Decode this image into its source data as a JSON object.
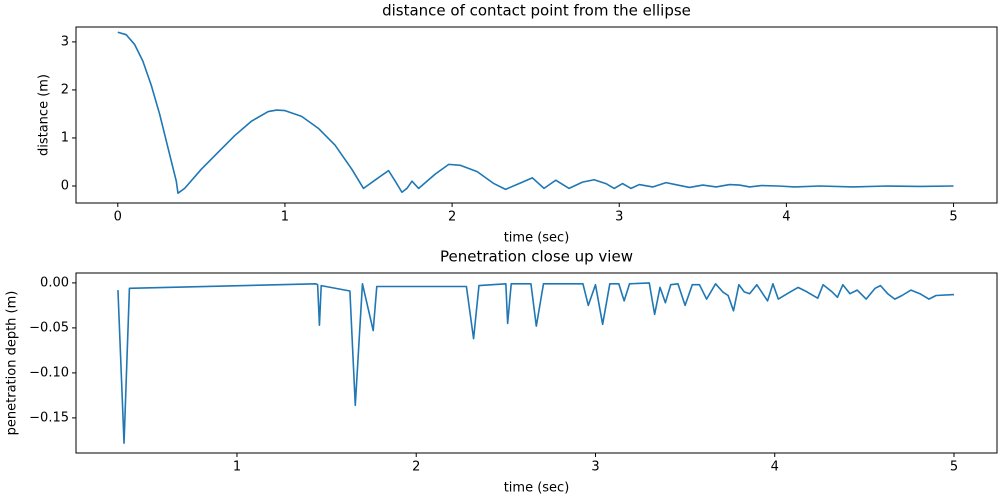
{
  "chart_data": [
    {
      "type": "line",
      "title": "distance of contact point from the ellipse",
      "xlabel": "time (sec)",
      "ylabel": "distance (m)",
      "x": [
        0,
        0.05,
        0.1,
        0.15,
        0.2,
        0.25,
        0.3,
        0.35,
        0.36,
        0.4,
        0.5,
        0.6,
        0.7,
        0.8,
        0.9,
        0.95,
        1.0,
        1.1,
        1.2,
        1.3,
        1.4,
        1.47,
        1.55,
        1.62,
        1.66,
        1.7,
        1.73,
        1.76,
        1.8,
        1.9,
        1.98,
        2.05,
        2.15,
        2.25,
        2.32,
        2.4,
        2.48,
        2.55,
        2.62,
        2.7,
        2.78,
        2.85,
        2.92,
        2.97,
        3.02,
        3.07,
        3.12,
        3.2,
        3.28,
        3.35,
        3.42,
        3.5,
        3.58,
        3.66,
        3.72,
        3.78,
        3.85,
        3.95,
        4.05,
        4.2,
        4.4,
        4.6,
        4.8,
        5.0
      ],
      "values": [
        3.2,
        3.15,
        2.95,
        2.6,
        2.1,
        1.5,
        0.8,
        0.1,
        -0.15,
        -0.05,
        0.35,
        0.7,
        1.05,
        1.35,
        1.55,
        1.58,
        1.57,
        1.45,
        1.2,
        0.85,
        0.35,
        -0.05,
        0.15,
        0.32,
        0.1,
        -0.13,
        -0.05,
        0.1,
        -0.05,
        0.25,
        0.45,
        0.43,
        0.3,
        0.05,
        -0.07,
        0.05,
        0.17,
        -0.05,
        0.12,
        -0.05,
        0.08,
        0.13,
        0.05,
        -0.05,
        0.05,
        -0.05,
        0.03,
        -0.02,
        0.07,
        0.02,
        -0.03,
        0.02,
        -0.02,
        0.03,
        0.02,
        -0.02,
        0.01,
        0.0,
        -0.02,
        0.0,
        -0.02,
        0.0,
        -0.01,
        0.0
      ],
      "color": "#1f77b4",
      "xlim": [
        -0.25,
        5.26
      ],
      "ylim": [
        -0.354,
        3.31
      ],
      "xticks": [
        0,
        1,
        2,
        3,
        4,
        5
      ],
      "yticks": [
        0,
        1,
        2,
        3
      ]
    },
    {
      "type": "line",
      "title": "Penetration close up view",
      "xlabel": "time (sec)",
      "ylabel": "penetration depth (m)",
      "x": [
        0.336,
        0.37,
        0.4,
        1.44,
        1.45,
        1.46,
        1.47,
        1.63,
        1.66,
        1.7,
        1.76,
        1.78,
        2.28,
        2.32,
        2.35,
        2.5,
        2.51,
        2.53,
        2.64,
        2.67,
        2.71,
        2.93,
        2.96,
        3.0,
        3.04,
        3.08,
        3.13,
        3.16,
        3.19,
        3.3,
        3.33,
        3.36,
        3.39,
        3.42,
        3.46,
        3.5,
        3.54,
        3.58,
        3.62,
        3.67,
        3.71,
        3.74,
        3.77,
        3.8,
        3.83,
        3.86,
        3.9,
        3.96,
        3.99,
        4.02,
        4.07,
        4.13,
        4.18,
        4.24,
        4.27,
        4.32,
        4.35,
        4.38,
        4.42,
        4.46,
        4.51,
        4.56,
        4.59,
        4.63,
        4.67,
        4.71,
        4.76,
        4.81,
        4.86,
        4.9,
        5.0
      ],
      "values": [
        -0.008,
        -0.178,
        -0.006,
        -0.001,
        -0.002,
        -0.047,
        -0.003,
        -0.009,
        -0.136,
        -0.001,
        -0.053,
        -0.004,
        -0.004,
        -0.062,
        -0.003,
        -0.001,
        -0.045,
        -0.001,
        -0.001,
        -0.048,
        -0.001,
        -0.001,
        -0.025,
        -0.002,
        -0.046,
        -0.001,
        -0.001,
        -0.02,
        -0.001,
        0.0,
        -0.035,
        -0.005,
        -0.022,
        -0.002,
        -0.001,
        -0.025,
        -0.002,
        -0.002,
        -0.018,
        -0.001,
        -0.01,
        -0.014,
        -0.031,
        -0.002,
        -0.01,
        -0.012,
        -0.002,
        -0.02,
        -0.001,
        -0.018,
        -0.012,
        -0.005,
        -0.01,
        -0.017,
        -0.002,
        -0.01,
        -0.016,
        -0.002,
        -0.012,
        -0.008,
        -0.018,
        -0.006,
        -0.003,
        -0.012,
        -0.018,
        -0.014,
        -0.008,
        -0.012,
        -0.018,
        -0.014,
        -0.013
      ],
      "color": "#1f77b4",
      "xlim": [
        0.102,
        5.24
      ],
      "ylim": [
        -0.189,
        0.011
      ],
      "xticks": [
        1,
        2,
        3,
        4,
        5
      ],
      "yticks": [
        {
          "value": 0,
          "label": "0.00"
        },
        {
          "value": -0.05,
          "label": "−0.05"
        },
        {
          "value": -0.1,
          "label": "−0.10"
        },
        {
          "value": -0.15,
          "label": "−0.15"
        }
      ]
    }
  ]
}
